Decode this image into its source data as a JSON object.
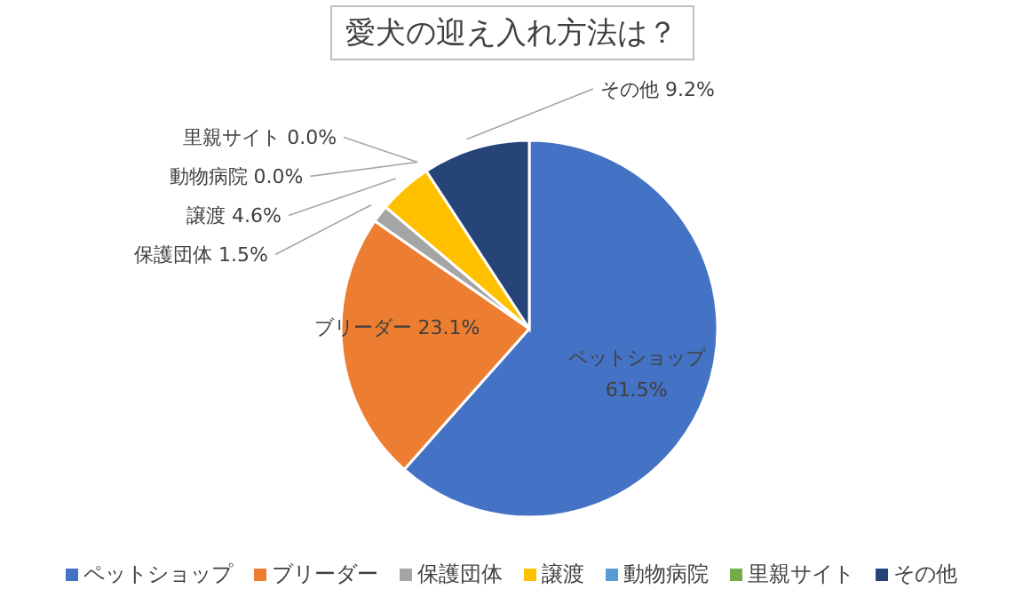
{
  "chart_data": {
    "type": "pie",
    "title": "愛犬の迎え入れ方法は？",
    "categories": [
      "ペットショップ",
      "ブリーダー",
      "保護団体",
      "譲渡",
      "動物病院",
      "里親サイト",
      "その他"
    ],
    "values": [
      61.5,
      23.1,
      1.5,
      4.6,
      0.0,
      0.0,
      9.2
    ],
    "colors": [
      "#4472c4",
      "#ed7d31",
      "#a5a5a5",
      "#ffc000",
      "#5b9bd5",
      "#70ad47",
      "#264478"
    ],
    "value_labels": [
      "61.5%",
      "23.1%",
      "1.5%",
      "4.6%",
      "0.0%",
      "0.0%",
      "9.2%"
    ],
    "legend": "bottom"
  }
}
